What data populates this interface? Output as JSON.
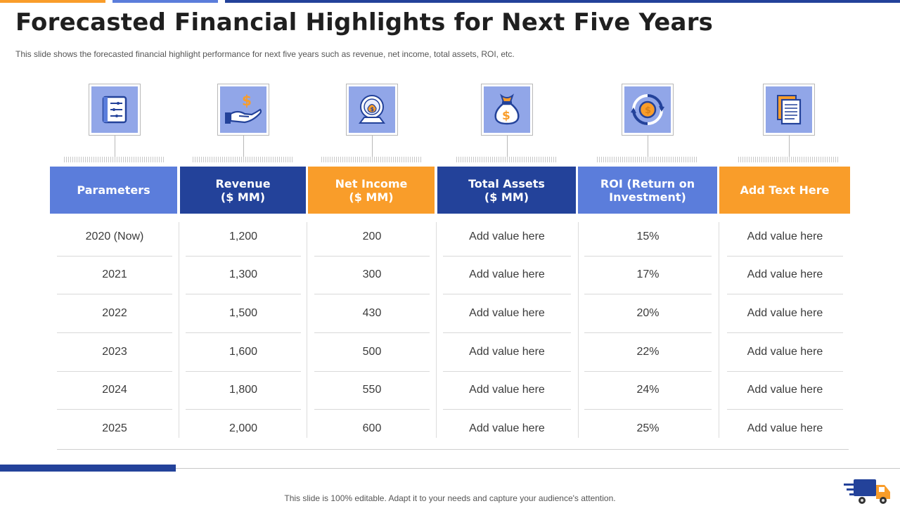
{
  "title": "Forecasted Financial Highlights for Next Five Years",
  "subtitle": "This slide shows the forecasted financial highlight performance  for next five  years such as revenue,  net income, total assets, ROI, etc.",
  "columns": [
    {
      "icon": "checklist-icon",
      "header": "Parameters",
      "color": "#5b7ddb"
    },
    {
      "icon": "hand-dollar-icon",
      "header": "Revenue\n($ MM)",
      "color": "#23429a"
    },
    {
      "icon": "money-bag-globe-icon",
      "header": "Net Income\n($ MM)",
      "color": "#f99d2a"
    },
    {
      "icon": "money-bag-icon",
      "header": "Total Assets\n($ MM)",
      "color": "#23429a"
    },
    {
      "icon": "roi-cycle-icon",
      "header": "ROI (Return on\nInvestment)",
      "color": "#5b7ddb"
    },
    {
      "icon": "documents-icon",
      "header": "Add Text Here",
      "color": "#f99d2a"
    }
  ],
  "rows": [
    [
      "2020 (Now)",
      "1,200",
      "200",
      "Add value here",
      "15%",
      "Add value here"
    ],
    [
      "2021",
      "1,300",
      "300",
      "Add value here",
      "17%",
      "Add value here"
    ],
    [
      "2022",
      "1,500",
      "430",
      "Add value here",
      "20%",
      "Add value here"
    ],
    [
      "2023",
      "1,600",
      "500",
      "Add value here",
      "22%",
      "Add value here"
    ],
    [
      "2024",
      "1,800",
      "550",
      "Add value here",
      "24%",
      "Add value here"
    ],
    [
      "2025",
      "2,000",
      "600",
      "Add value here",
      "25%",
      "Add value here"
    ]
  ],
  "footer": "This slide is 100% editable. Adapt it to your needs and capture your audience's attention.",
  "colors": {
    "accent_orange": "#f99d2a",
    "accent_blue": "#5b7ddb",
    "dark_blue": "#23429a",
    "icon_bg": "#91a6e8"
  }
}
